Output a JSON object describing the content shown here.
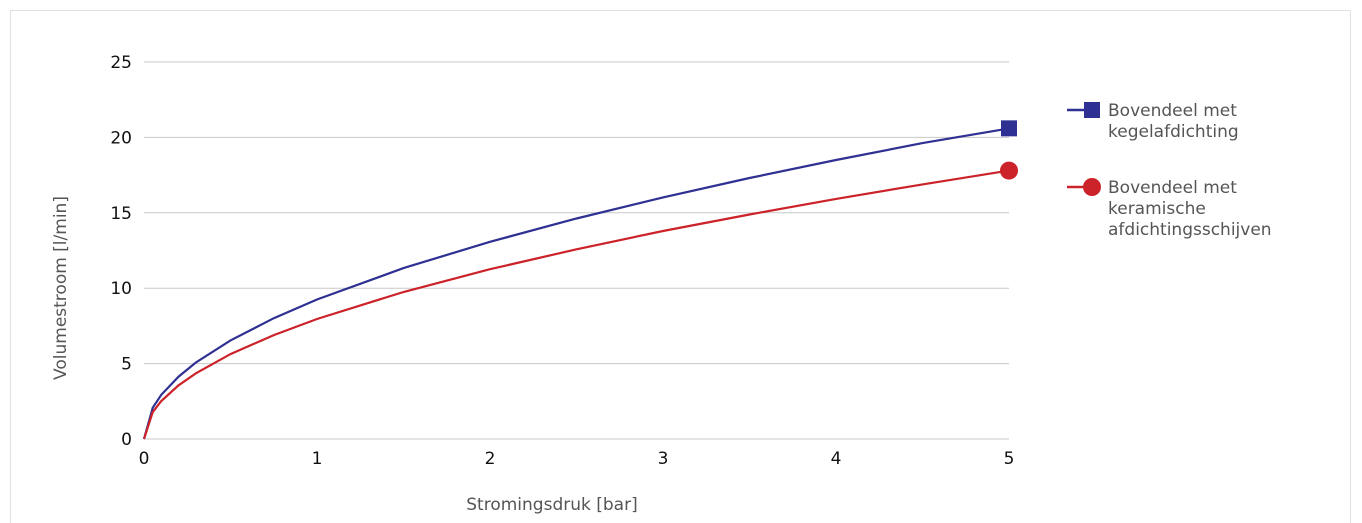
{
  "chart_data": {
    "type": "line",
    "xlabel": "Stromingsdruk [bar]",
    "ylabel": "Volumestroom [l/min]",
    "xlim": [
      0,
      5
    ],
    "ylim": [
      0,
      25
    ],
    "x_ticks": [
      "0",
      "1",
      "2",
      "3",
      "4",
      "5"
    ],
    "y_ticks": [
      "0",
      "5",
      "10",
      "15",
      "20",
      "25"
    ],
    "grid": "horizontal",
    "legend_position": "right",
    "series": [
      {
        "name_lines": [
          "Bovendeel met",
          "kegelafdichting"
        ],
        "color": "#2e3192",
        "marker": "square",
        "x": [
          0,
          0.05,
          0.1,
          0.2,
          0.3,
          0.5,
          0.75,
          1,
          1.5,
          2,
          2.5,
          3,
          3.5,
          4,
          4.5,
          5
        ],
        "y": [
          0,
          2.07,
          2.93,
          4.14,
          5.07,
          6.54,
          8.01,
          9.25,
          11.33,
          13.08,
          14.62,
          16.02,
          17.31,
          18.5,
          19.62,
          20.6
        ]
      },
      {
        "name_lines": [
          "Bovendeel met",
          "keramische",
          "afdichtingsschijven"
        ],
        "color": "#cc2229",
        "marker": "circle",
        "x": [
          0,
          0.05,
          0.1,
          0.2,
          0.3,
          0.5,
          0.75,
          1,
          1.5,
          2,
          2.5,
          3,
          3.5,
          4,
          4.5,
          5
        ],
        "y": [
          0,
          1.78,
          2.52,
          3.56,
          4.36,
          5.63,
          6.89,
          7.96,
          9.75,
          11.26,
          12.58,
          13.79,
          14.89,
          15.92,
          16.88,
          17.8
        ]
      }
    ]
  }
}
